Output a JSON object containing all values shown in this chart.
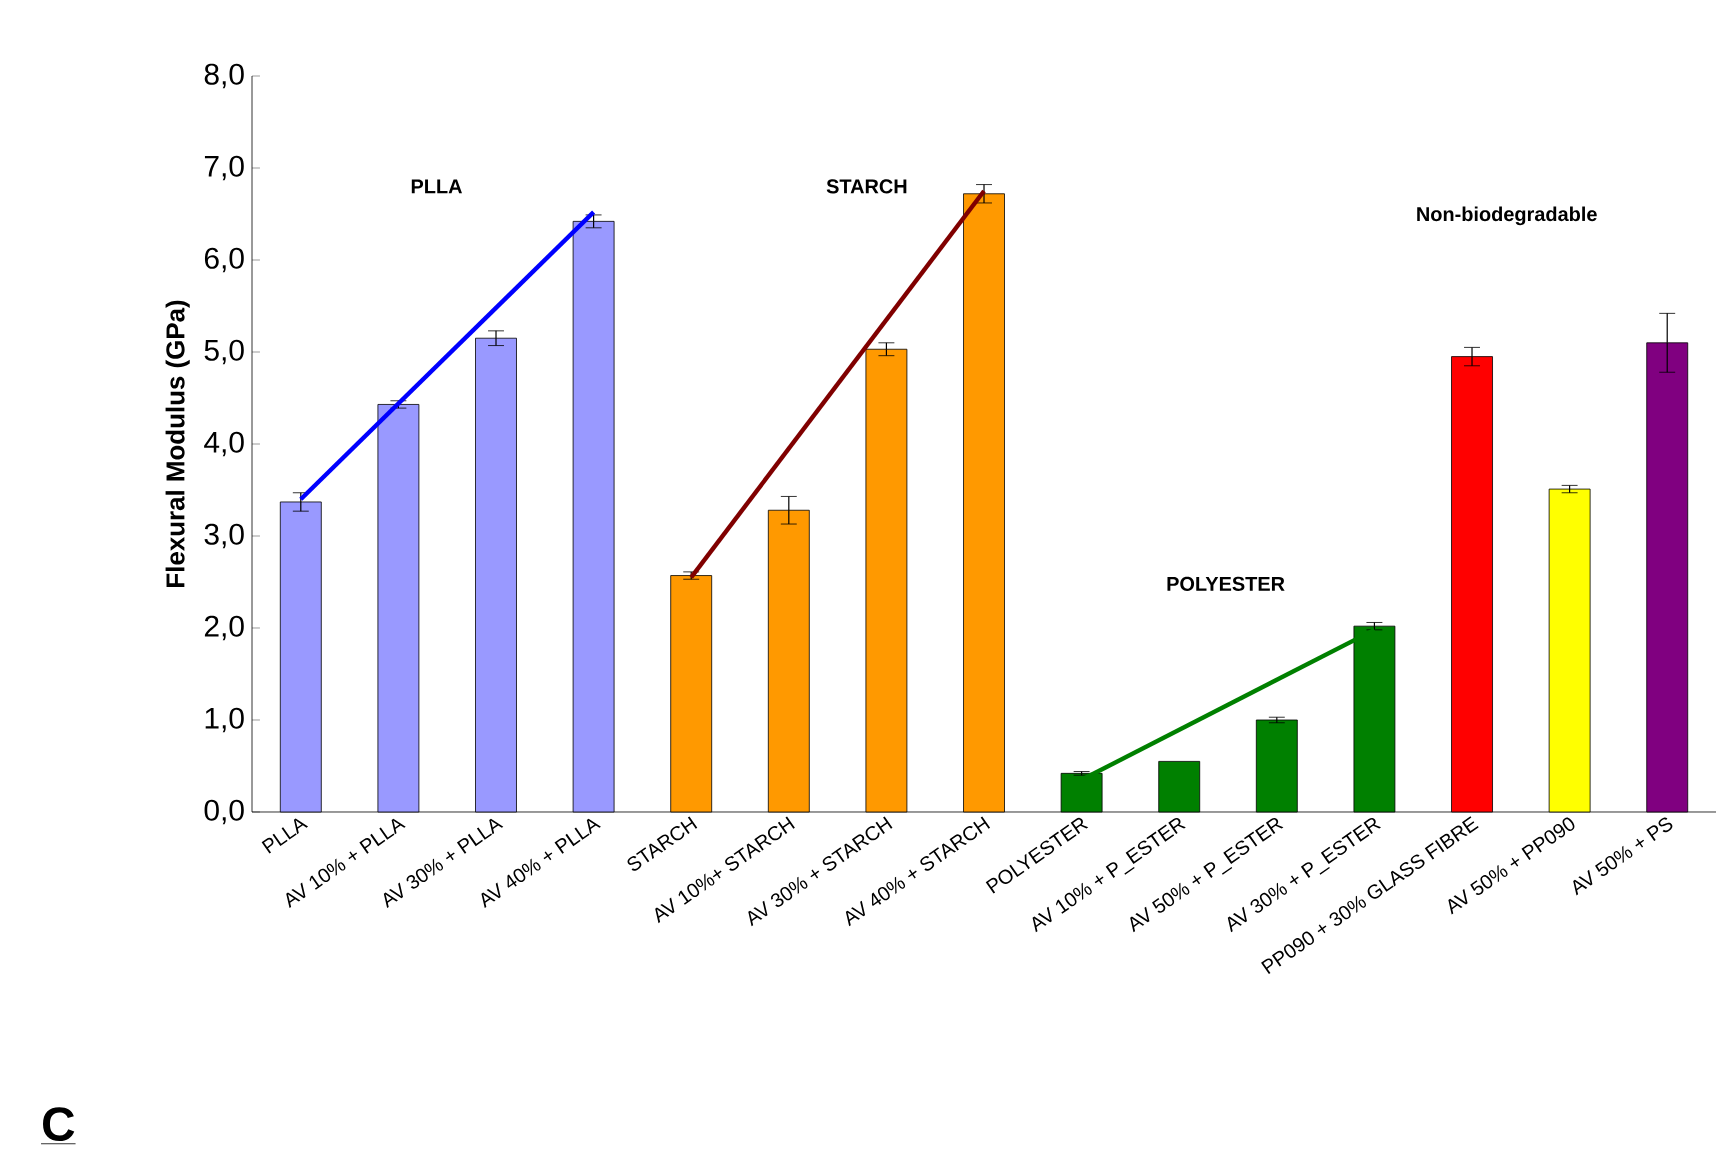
{
  "chart_data": {
    "type": "bar",
    "ylabel": "Flexural Modulus (GPa)",
    "categories": [
      "PLLA",
      "AV 10% + PLLA",
      "AV 30% + PLLA",
      "AV 40% + PLLA",
      "STARCH",
      "AV 10%+ STARCH",
      "AV 30% + STARCH",
      "AV 40% + STARCH",
      "POLYESTER",
      "AV 10% + P_ESTER",
      "AV 50% + P_ESTER",
      "AV 30% + P_ESTER",
      "PP090 + 30% GLASS FIBRE",
      "AV 50% + PP090",
      "AV 50% + PS"
    ],
    "series": [
      {
        "values": [
          3.37,
          4.43,
          5.15,
          6.42,
          2.57,
          3.28,
          5.03,
          6.72,
          0.42,
          0.55,
          1.0,
          2.02,
          4.95,
          3.51,
          5.1
        ],
        "colors": [
          "#9999ff",
          "#9999ff",
          "#9999ff",
          "#9999ff",
          "#ff9900",
          "#ff9900",
          "#ff9900",
          "#ff9900",
          "#008000",
          "#008000",
          "#008000",
          "#008000",
          "#ff0000",
          "#ffff00",
          "#800080"
        ],
        "errors": [
          0.1,
          0.04,
          0.08,
          0.07,
          0.04,
          0.15,
          0.07,
          0.1,
          0.02,
          null,
          0.03,
          0.04,
          0.1,
          0.04,
          0.32
        ]
      },
      {
        "type": "line",
        "color": "#0000ff",
        "x": [
          "PLLA",
          "AV 40% + PLLA"
        ],
        "values": [
          3.4,
          6.52
        ]
      },
      {
        "type": "line",
        "color": "#800000",
        "x": [
          "STARCH",
          "AV 40% + STARCH"
        ],
        "values": [
          2.55,
          6.75
        ]
      },
      {
        "type": "line",
        "color": "#008000",
        "x": [
          "POLYESTER",
          "AV 30% + P_ESTER"
        ],
        "values": [
          0.35,
          1.98
        ]
      }
    ],
    "ylim": [
      0,
      8
    ],
    "yticks": [
      {
        "value": 0,
        "label": "0,0"
      },
      {
        "value": 1,
        "label": "1,0"
      },
      {
        "value": 2,
        "label": "2,0"
      },
      {
        "value": 3,
        "label": "3,0"
      },
      {
        "value": 4,
        "label": "4,0"
      },
      {
        "value": 5,
        "label": "5,0"
      },
      {
        "value": 6,
        "label": "6,0"
      },
      {
        "value": 7,
        "label": "7,0"
      },
      {
        "value": 8,
        "label": "8,0"
      }
    ],
    "annotations": [
      "PLLA",
      "STARCH",
      "POLYESTER",
      "Non-biodegradable",
      "C"
    ]
  }
}
